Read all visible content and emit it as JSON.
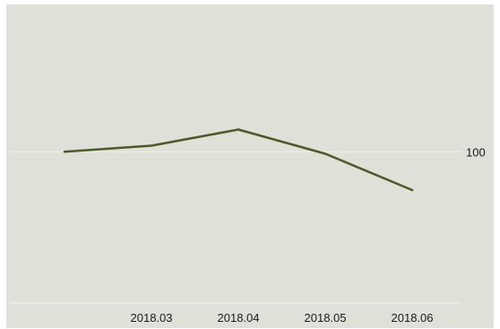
{
  "colors": {
    "background": "#dfe0d7",
    "line": "#4b5a28",
    "gridline": "#f2f2ee",
    "baseline": "#f2f2ee",
    "text": "#1a1a1a"
  },
  "chart_data": {
    "type": "line",
    "title": "",
    "xlabel": "",
    "ylabel": "",
    "x": [
      "2018.02",
      "2018.03",
      "2018.04",
      "2018.05",
      "2018.06"
    ],
    "x_tick_labels": [
      "2018.03",
      "2018.04",
      "2018.05",
      "2018.06"
    ],
    "y_tick_values": [
      100
    ],
    "y_tick_labels": [
      "100"
    ],
    "y_axis_position": "right",
    "ylim": [
      92.5,
      107.3
    ],
    "grid": true,
    "legend": "none",
    "series": [
      {
        "values": [
          100.0,
          100.3,
          101.1,
          99.9,
          98.1
        ]
      }
    ]
  }
}
